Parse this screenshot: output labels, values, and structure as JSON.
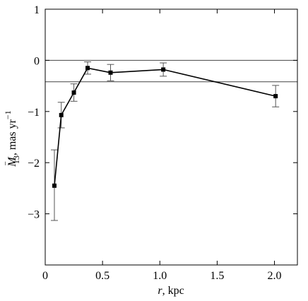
{
  "chart_data": {
    "type": "line",
    "xlabel": {
      "var": "r",
      "unit": ", kpc"
    },
    "ylabel": {
      "sym": "M",
      "over": "−",
      "sub": "13",
      "mid": ", mas yr",
      "sup": "−1"
    },
    "xlim": [
      0,
      2.2
    ],
    "ylim": [
      -4,
      1
    ],
    "x_ticks": [
      0,
      0.5,
      1.0,
      1.5,
      2.0
    ],
    "x_tick_labels": [
      "0",
      "0.5",
      "1.0",
      "1.5",
      "2.0"
    ],
    "y_ticks": [
      1,
      0,
      -1,
      -2,
      -3
    ],
    "y_tick_labels": [
      "1",
      "0",
      "−1",
      "−2",
      "−3"
    ],
    "reference_lines": [
      0,
      -0.42
    ],
    "series": [
      {
        "x": [
          0.08,
          0.14,
          0.25,
          0.37,
          0.57,
          1.03,
          2.01
        ],
        "y": [
          -2.45,
          -1.07,
          -0.63,
          -0.15,
          -0.24,
          -0.18,
          -0.7
        ],
        "err_low": [
          0.68,
          0.25,
          0.17,
          0.12,
          0.16,
          0.13,
          0.21
        ],
        "err_high": [
          0.7,
          0.25,
          0.17,
          0.12,
          0.16,
          0.13,
          0.21
        ]
      }
    ],
    "grid": false
  }
}
